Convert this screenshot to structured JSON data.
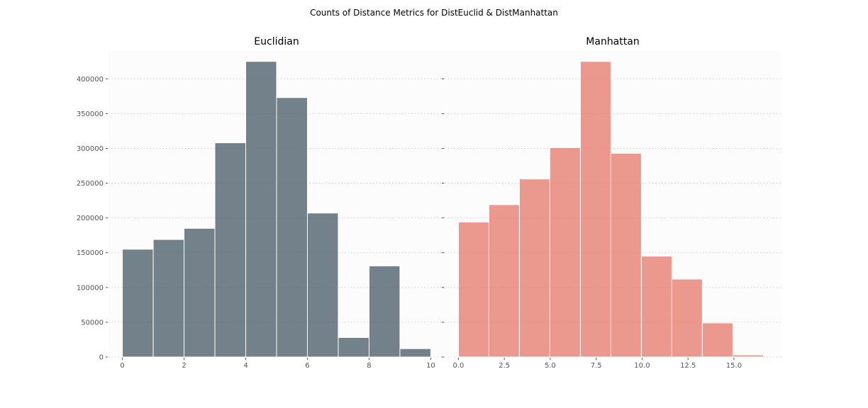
{
  "figure": {
    "title": "Counts of Distance Metrics for DistEuclid & DistManhattan"
  },
  "chart_data": [
    {
      "type": "bar",
      "title": "Euclidian",
      "xlabel": "",
      "ylabel": "",
      "color": "#5b6b76",
      "background": "#fcfcfc",
      "grid": "horizontal dotted",
      "xlim": [
        -0.45,
        10.45
      ],
      "ylim": [
        0,
        440000
      ],
      "xticks": [
        0,
        2,
        4,
        6,
        8,
        10
      ],
      "xtick_labels": [
        "0",
        "2",
        "4",
        "6",
        "8",
        "10"
      ],
      "yticks": [
        0,
        50000,
        100000,
        150000,
        200000,
        250000,
        300000,
        350000,
        400000
      ],
      "ytick_labels": [
        "0",
        "50000",
        "100000",
        "150000",
        "200000",
        "250000",
        "300000",
        "350000",
        "400000"
      ],
      "bins": [
        [
          0,
          1
        ],
        [
          1,
          2
        ],
        [
          2,
          3
        ],
        [
          3,
          4
        ],
        [
          4,
          5
        ],
        [
          5,
          6
        ],
        [
          6,
          7
        ],
        [
          7,
          8
        ],
        [
          8,
          9
        ],
        [
          9,
          10
        ]
      ],
      "values": [
        155000,
        169000,
        185000,
        308000,
        425000,
        373000,
        207000,
        28000,
        131000,
        12000
      ]
    },
    {
      "type": "bar",
      "title": "Manhattan",
      "xlabel": "",
      "ylabel": "",
      "color": "#e8877a",
      "background": "#fcfcfc",
      "grid": "horizontal dotted",
      "xlim": [
        -0.75,
        17.55
      ],
      "ylim": [
        0,
        440000
      ],
      "xticks": [
        0,
        2.5,
        5,
        7.5,
        10,
        12.5,
        15
      ],
      "xtick_labels": [
        "0.0",
        "2.5",
        "5.0",
        "7.5",
        "10.0",
        "12.5",
        "15.0"
      ],
      "yticks": [
        0,
        50000,
        100000,
        150000,
        200000,
        250000,
        300000,
        350000,
        400000
      ],
      "ytick_labels": [
        "",
        "",
        "",
        "",
        "",
        "",
        "",
        "",
        ""
      ],
      "bins": [
        [
          0,
          1.66
        ],
        [
          1.66,
          3.32
        ],
        [
          3.32,
          4.98
        ],
        [
          4.98,
          6.64
        ],
        [
          6.64,
          8.3
        ],
        [
          8.3,
          9.96
        ],
        [
          9.96,
          11.62
        ],
        [
          11.62,
          13.28
        ],
        [
          13.28,
          14.94
        ],
        [
          14.94,
          16.6
        ]
      ],
      "values": [
        194000,
        219000,
        256000,
        301000,
        425000,
        293000,
        145000,
        112000,
        49000,
        3000
      ]
    }
  ]
}
